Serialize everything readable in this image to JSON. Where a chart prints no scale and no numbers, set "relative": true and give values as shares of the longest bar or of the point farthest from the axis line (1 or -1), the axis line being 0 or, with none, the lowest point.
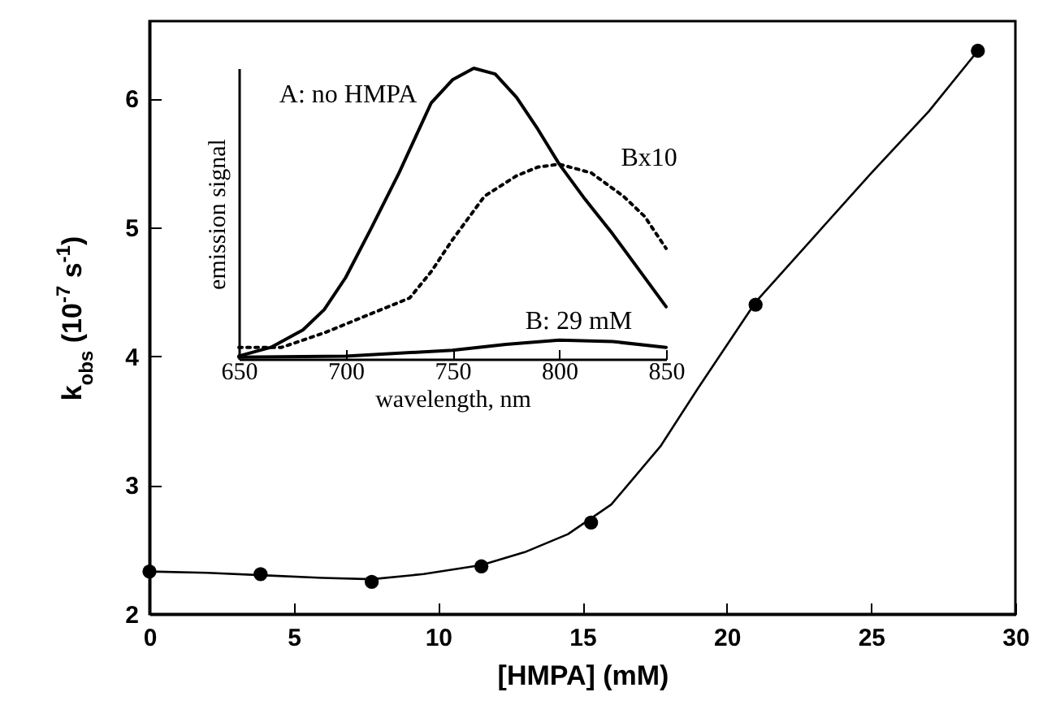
{
  "chart_data": [
    {
      "type": "scatter",
      "xlabel": "[HMPA]  (mM)",
      "ylabel": "k$_{obs}$ (10$^{-7}$ s$^{-1}$)",
      "xlim": [
        0,
        30
      ],
      "xticks": [
        0,
        5,
        10,
        15,
        20,
        25,
        30
      ],
      "ylim": [
        2,
        6.6
      ],
      "yticks": [
        2,
        3,
        4,
        5,
        6
      ],
      "grid": false,
      "series": [
        {
          "marker": "circle",
          "color": "#000000",
          "x": [
            0,
            3.85,
            7.7,
            11.5,
            15.3,
            21.0,
            28.7
          ],
          "values": [
            2.33,
            2.31,
            2.25,
            2.37,
            2.71,
            4.4,
            6.37
          ]
        },
        {
          "type": "line",
          "marker": "none",
          "color": "#000000",
          "x": [
            0,
            2,
            4,
            6,
            7.7,
            9.5,
            11.5,
            13,
            14.5,
            16,
            17.7,
            19,
            21,
            23,
            25,
            27,
            28.7
          ],
          "values": [
            2.33,
            2.32,
            2.3,
            2.28,
            2.27,
            2.31,
            2.38,
            2.48,
            2.62,
            2.85,
            3.3,
            3.75,
            4.42,
            4.92,
            5.42,
            5.9,
            6.37
          ]
        }
      ]
    },
    {
      "type": "line",
      "relative": true,
      "xlabel": "wavelength, nm",
      "ylabel": "emission signal",
      "xlim": [
        650,
        850
      ],
      "xticks": [
        650,
        700,
        750,
        800,
        850
      ],
      "grid": false,
      "series": [
        {
          "name": "A: no HMPA",
          "color": "#000000",
          "line_style": "solid",
          "x": [
            650,
            665,
            680,
            690,
            700,
            712,
            725,
            740,
            750,
            760,
            770,
            780,
            790,
            800,
            812,
            825,
            838,
            850
          ],
          "values": [
            0.01,
            0.04,
            0.1,
            0.17,
            0.28,
            0.45,
            0.64,
            0.88,
            0.96,
            1.0,
            0.98,
            0.9,
            0.79,
            0.67,
            0.55,
            0.43,
            0.3,
            0.18
          ]
        },
        {
          "name": "Bx10",
          "color": "#000000",
          "line_style": "dotted",
          "x": [
            650,
            670,
            690,
            710,
            730,
            740,
            750,
            765,
            780,
            790,
            800,
            815,
            830,
            840,
            850
          ],
          "values": [
            0.04,
            0.04,
            0.09,
            0.15,
            0.21,
            0.3,
            0.41,
            0.56,
            0.63,
            0.66,
            0.67,
            0.64,
            0.56,
            0.49,
            0.38
          ]
        },
        {
          "name": "B: 29 mM",
          "color": "#000000",
          "line_style": "solid",
          "x": [
            650,
            700,
            750,
            775,
            800,
            825,
            850
          ],
          "values": [
            0.006,
            0.01,
            0.03,
            0.05,
            0.065,
            0.06,
            0.04
          ]
        }
      ]
    }
  ]
}
